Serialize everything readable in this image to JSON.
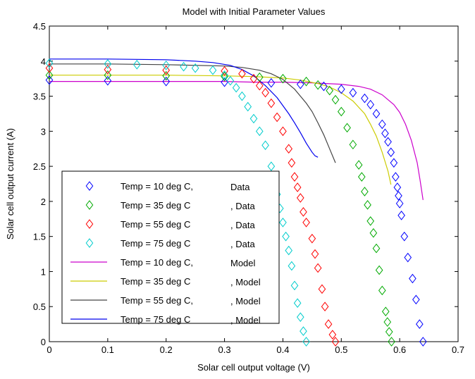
{
  "chart_data": {
    "type": "scatter",
    "title": "Model with Initial Parameter Values",
    "xlabel": "Solar cell output voltage (V)",
    "ylabel": "Solar cell output current (A)",
    "xlim": [
      0,
      0.7
    ],
    "ylim": [
      0,
      4.5
    ],
    "xticks": [
      "0",
      "0.1",
      "0.2",
      "0.3",
      "0.4",
      "0.5",
      "0.6",
      "0.7"
    ],
    "yticks": [
      "0",
      "0.5",
      "1",
      "1.5",
      "2",
      "2.5",
      "3",
      "3.5",
      "4",
      "4.5"
    ],
    "grid": false,
    "legend_position": "lower-left",
    "data_series": [
      {
        "legend_label": "Temp = 10 deg C,",
        "legend_suffix": "Data",
        "color": "#0000ff",
        "marker": "diamond",
        "points": [
          [
            0,
            3.73
          ],
          [
            0.1,
            3.72
          ],
          [
            0.2,
            3.71
          ],
          [
            0.3,
            3.7
          ],
          [
            0.38,
            3.69
          ],
          [
            0.43,
            3.67
          ],
          [
            0.47,
            3.64
          ],
          [
            0.5,
            3.6
          ],
          [
            0.52,
            3.55
          ],
          [
            0.54,
            3.47
          ],
          [
            0.55,
            3.38
          ],
          [
            0.56,
            3.25
          ],
          [
            0.57,
            3.1
          ],
          [
            0.575,
            2.97
          ],
          [
            0.58,
            2.85
          ],
          [
            0.585,
            2.7
          ],
          [
            0.59,
            2.55
          ],
          [
            0.593,
            2.35
          ],
          [
            0.596,
            2.2
          ],
          [
            0.598,
            2.08
          ],
          [
            0.6,
            1.97
          ],
          [
            0.603,
            1.8
          ],
          [
            0.608,
            1.5
          ],
          [
            0.614,
            1.2
          ],
          [
            0.622,
            0.9
          ],
          [
            0.628,
            0.6
          ],
          [
            0.634,
            0.25
          ],
          [
            0.64,
            0.0
          ]
        ]
      },
      {
        "legend_label": "Temp = 35 deg C",
        "legend_suffix": ", Data",
        "color": "#00aa00",
        "marker": "diamond",
        "points": [
          [
            0,
            3.8
          ],
          [
            0.1,
            3.8
          ],
          [
            0.2,
            3.79
          ],
          [
            0.3,
            3.78
          ],
          [
            0.36,
            3.77
          ],
          [
            0.4,
            3.75
          ],
          [
            0.44,
            3.71
          ],
          [
            0.46,
            3.66
          ],
          [
            0.48,
            3.58
          ],
          [
            0.49,
            3.45
          ],
          [
            0.5,
            3.28
          ],
          [
            0.51,
            3.05
          ],
          [
            0.52,
            2.81
          ],
          [
            0.53,
            2.52
          ],
          [
            0.535,
            2.35
          ],
          [
            0.54,
            2.14
          ],
          [
            0.545,
            1.95
          ],
          [
            0.55,
            1.72
          ],
          [
            0.555,
            1.55
          ],
          [
            0.56,
            1.33
          ],
          [
            0.565,
            1.02
          ],
          [
            0.57,
            0.73
          ],
          [
            0.576,
            0.43
          ],
          [
            0.579,
            0.28
          ],
          [
            0.582,
            0.14
          ],
          [
            0.586,
            0.0
          ]
        ]
      },
      {
        "legend_label": "Temp = 55 deg C",
        "legend_suffix": ", Data",
        "color": "#ff0000",
        "marker": "diamond",
        "points": [
          [
            0,
            3.9
          ],
          [
            0.1,
            3.88
          ],
          [
            0.2,
            3.87
          ],
          [
            0.3,
            3.86
          ],
          [
            0.33,
            3.82
          ],
          [
            0.35,
            3.75
          ],
          [
            0.36,
            3.65
          ],
          [
            0.37,
            3.55
          ],
          [
            0.38,
            3.4
          ],
          [
            0.39,
            3.2
          ],
          [
            0.4,
            3.0
          ],
          [
            0.41,
            2.75
          ],
          [
            0.415,
            2.55
          ],
          [
            0.42,
            2.35
          ],
          [
            0.425,
            2.2
          ],
          [
            0.43,
            2.05
          ],
          [
            0.435,
            1.85
          ],
          [
            0.44,
            1.7
          ],
          [
            0.45,
            1.47
          ],
          [
            0.455,
            1.25
          ],
          [
            0.46,
            1.05
          ],
          [
            0.467,
            0.75
          ],
          [
            0.472,
            0.5
          ],
          [
            0.478,
            0.25
          ],
          [
            0.485,
            0.1
          ],
          [
            0.49,
            0.0
          ]
        ]
      },
      {
        "legend_label": "Temp = 75 deg C",
        "legend_suffix": ", Data",
        "color": "#00cccc",
        "marker": "diamond",
        "points": [
          [
            0,
            3.97
          ],
          [
            0.1,
            3.96
          ],
          [
            0.15,
            3.95
          ],
          [
            0.2,
            3.94
          ],
          [
            0.23,
            3.92
          ],
          [
            0.25,
            3.9
          ],
          [
            0.28,
            3.87
          ],
          [
            0.3,
            3.8
          ],
          [
            0.31,
            3.72
          ],
          [
            0.32,
            3.62
          ],
          [
            0.33,
            3.5
          ],
          [
            0.34,
            3.35
          ],
          [
            0.35,
            3.18
          ],
          [
            0.36,
            3.0
          ],
          [
            0.37,
            2.8
          ],
          [
            0.38,
            2.5
          ],
          [
            0.385,
            2.28
          ],
          [
            0.39,
            2.1
          ],
          [
            0.395,
            1.9
          ],
          [
            0.4,
            1.7
          ],
          [
            0.405,
            1.5
          ],
          [
            0.41,
            1.3
          ],
          [
            0.415,
            1.08
          ],
          [
            0.42,
            0.8
          ],
          [
            0.425,
            0.55
          ],
          [
            0.43,
            0.35
          ],
          [
            0.435,
            0.15
          ],
          [
            0.44,
            0.0
          ]
        ]
      }
    ],
    "model_series": [
      {
        "legend_label": "Temp = 10 deg C,",
        "legend_suffix": "Model",
        "color": "#cc00cc",
        "x": [
          0,
          0.1,
          0.2,
          0.3,
          0.35,
          0.4,
          0.45,
          0.5,
          0.53,
          0.55,
          0.57,
          0.59,
          0.6,
          0.61,
          0.62,
          0.63,
          0.635,
          0.64
        ],
        "y": [
          3.71,
          3.71,
          3.71,
          3.71,
          3.7,
          3.7,
          3.69,
          3.67,
          3.64,
          3.6,
          3.52,
          3.38,
          3.27,
          3.1,
          2.87,
          2.55,
          2.3,
          2.02
        ]
      },
      {
        "legend_label": "Temp = 35 deg C",
        "legend_suffix": ", Model",
        "color": "#cccc00",
        "x": [
          0,
          0.1,
          0.2,
          0.3,
          0.35,
          0.4,
          0.43,
          0.46,
          0.48,
          0.5,
          0.52,
          0.54,
          0.55,
          0.56,
          0.57,
          0.58,
          0.585
        ],
        "y": [
          3.8,
          3.8,
          3.8,
          3.79,
          3.78,
          3.76,
          3.73,
          3.68,
          3.63,
          3.55,
          3.43,
          3.25,
          3.1,
          2.93,
          2.7,
          2.43,
          2.24
        ]
      },
      {
        "legend_label": "Temp =  55 deg C,",
        "legend_suffix": ", Model",
        "color": "#444444",
        "x": [
          0,
          0.1,
          0.2,
          0.3,
          0.33,
          0.36,
          0.38,
          0.4,
          0.42,
          0.44,
          0.45,
          0.46,
          0.47,
          0.48,
          0.49
        ],
        "y": [
          3.96,
          3.96,
          3.95,
          3.93,
          3.91,
          3.87,
          3.82,
          3.74,
          3.6,
          3.4,
          3.28,
          3.12,
          2.95,
          2.75,
          2.55
        ]
      },
      {
        "legend_label": "Temp = 75 deg C",
        "legend_suffix": ", Model",
        "color": "#0000ee",
        "x": [
          0,
          0.1,
          0.2,
          0.25,
          0.28,
          0.31,
          0.33,
          0.35,
          0.37,
          0.39,
          0.41,
          0.42,
          0.43,
          0.44,
          0.45,
          0.455,
          0.46
        ],
        "y": [
          4.03,
          4.03,
          4.02,
          4.0,
          3.98,
          3.94,
          3.88,
          3.79,
          3.65,
          3.48,
          3.25,
          3.12,
          2.98,
          2.83,
          2.7,
          2.65,
          2.63
        ]
      }
    ]
  }
}
